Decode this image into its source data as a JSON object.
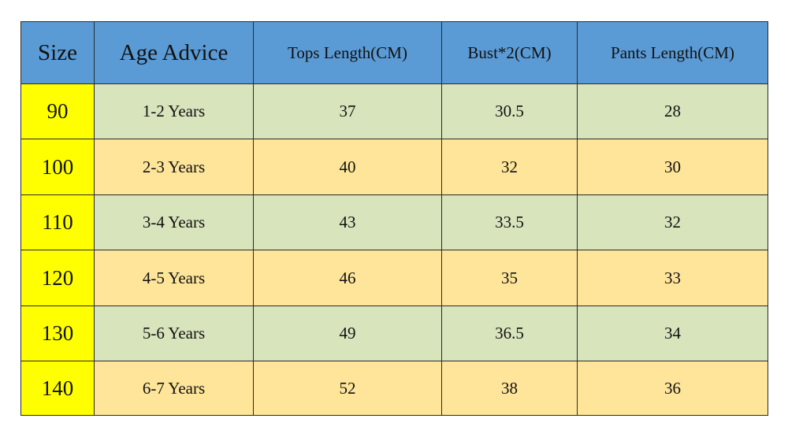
{
  "table": {
    "header": [
      "Size",
      "Age Advice",
      "Tops Length(CM)",
      "Bust*2(CM)",
      "Pants Length(CM)"
    ],
    "rows": [
      [
        "90",
        "1-2 Years",
        "37",
        "30.5",
        "28"
      ],
      [
        "100",
        "2-3 Years",
        "40",
        "32",
        "30"
      ],
      [
        "110",
        "3-4 Years",
        "43",
        "33.5",
        "32"
      ],
      [
        "120",
        "4-5 Years",
        "46",
        "35",
        "33"
      ],
      [
        "130",
        "5-6 Years",
        "49",
        "36.5",
        "34"
      ],
      [
        "140",
        "6-7 Years",
        "52",
        "38",
        "36"
      ]
    ]
  }
}
